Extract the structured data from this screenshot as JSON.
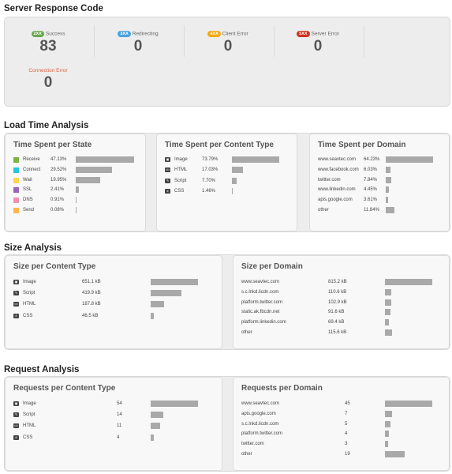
{
  "server_response": {
    "title": "Server Response Code",
    "stats": [
      {
        "badge": "2XX",
        "label": "Success",
        "value": "83",
        "color": "#6aa84f"
      },
      {
        "badge": "3XX",
        "label": "Redirecting",
        "value": "0",
        "color": "#4aa3df"
      },
      {
        "badge": "4XX",
        "label": "Client Error",
        "value": "0",
        "color": "#f1a915"
      },
      {
        "badge": "5XX",
        "label": "Server Error",
        "value": "0",
        "color": "#cc3322"
      }
    ],
    "connection_error": {
      "label": "Connection Error",
      "value": "0",
      "color": "#e06040"
    }
  },
  "load_time": {
    "title": "Load Time Analysis",
    "state": {
      "title": "Time Spent per State",
      "rows": [
        {
          "label": "Receive",
          "value": "47.13%",
          "pct": 47.13,
          "color": "#7cb342"
        },
        {
          "label": "Connect",
          "value": "29.52%",
          "pct": 29.52,
          "color": "#26c6da"
        },
        {
          "label": "Wait",
          "value": "19.95%",
          "pct": 19.95,
          "color": "#ffd54f"
        },
        {
          "label": "SSL",
          "value": "2.41%",
          "pct": 2.41,
          "color": "#9c64b8"
        },
        {
          "label": "DNS",
          "value": "0.91%",
          "pct": 0.91,
          "color": "#f48fb1"
        },
        {
          "label": "Send",
          "value": "0.08%",
          "pct": 0.08,
          "color": "#ffb74d"
        }
      ]
    },
    "content_type": {
      "title": "Time Spent per Content Type",
      "rows": [
        {
          "label": "Image",
          "value": "73.79%",
          "pct": 73.79
        },
        {
          "label": "HTML",
          "value": "17.03%",
          "pct": 17.03
        },
        {
          "label": "Script",
          "value": "7.70%",
          "pct": 7.7
        },
        {
          "label": "CSS",
          "value": "1.46%",
          "pct": 1.46
        }
      ]
    },
    "domain": {
      "title": "Time Spent per Domain",
      "rows": [
        {
          "label": "www.seavtec.com",
          "value": "64.23%",
          "pct": 64.23
        },
        {
          "label": "www.facebook.com",
          "value": "6.03%",
          "pct": 6.03
        },
        {
          "label": "twitter.com",
          "value": "7.84%",
          "pct": 7.84
        },
        {
          "label": "www.linkedin.com",
          "value": "4.45%",
          "pct": 4.45
        },
        {
          "label": "apis.google.com",
          "value": "3.61%",
          "pct": 3.61
        },
        {
          "label": "other",
          "value": "11.84%",
          "pct": 11.84
        }
      ]
    }
  },
  "size": {
    "title": "Size Analysis",
    "content_type": {
      "title": "Size per Content Type",
      "rows": [
        {
          "label": "Image",
          "value": "651.1 kB",
          "amount": 651.1
        },
        {
          "label": "Script",
          "value": "419.9 kB",
          "amount": 419.9
        },
        {
          "label": "HTML",
          "value": "187.8 kB",
          "amount": 187.8
        },
        {
          "label": "CSS",
          "value": "46.5 kB",
          "amount": 46.5
        }
      ]
    },
    "domain": {
      "title": "Size per Domain",
      "rows": [
        {
          "label": "www.seavtec.com",
          "value": "815.2 kB",
          "amount": 815.2
        },
        {
          "label": "s.c.lnkd.licdn.com",
          "value": "110.6 kB",
          "amount": 110.6
        },
        {
          "label": "platform.twitter.com",
          "value": "102.9 kB",
          "amount": 102.9
        },
        {
          "label": "static.ak.fbcdn.net",
          "value": "91.6 kB",
          "amount": 91.6
        },
        {
          "label": "platform.linkedin.com",
          "value": "69.4 kB",
          "amount": 69.4
        },
        {
          "label": "other",
          "value": "115.6 kB",
          "amount": 115.6
        }
      ]
    }
  },
  "requests": {
    "title": "Request Analysis",
    "content_type": {
      "title": "Requests per Content Type",
      "rows": [
        {
          "label": "Image",
          "value": "54",
          "amount": 54
        },
        {
          "label": "Script",
          "value": "14",
          "amount": 14
        },
        {
          "label": "HTML",
          "value": "11",
          "amount": 11
        },
        {
          "label": "CSS",
          "value": "4",
          "amount": 4
        }
      ]
    },
    "domain": {
      "title": "Requests per Domain",
      "rows": [
        {
          "label": "www.seavtec.com",
          "value": "45",
          "amount": 45
        },
        {
          "label": "apis.google.com",
          "value": "7",
          "amount": 7
        },
        {
          "label": "s.c.lnkd.licdn.com",
          "value": "5",
          "amount": 5
        },
        {
          "label": "platform.twitter.com",
          "value": "4",
          "amount": 4
        },
        {
          "label": "twitter.com",
          "value": "3",
          "amount": 3
        },
        {
          "label": "other",
          "value": "19",
          "amount": 19
        }
      ]
    }
  }
}
